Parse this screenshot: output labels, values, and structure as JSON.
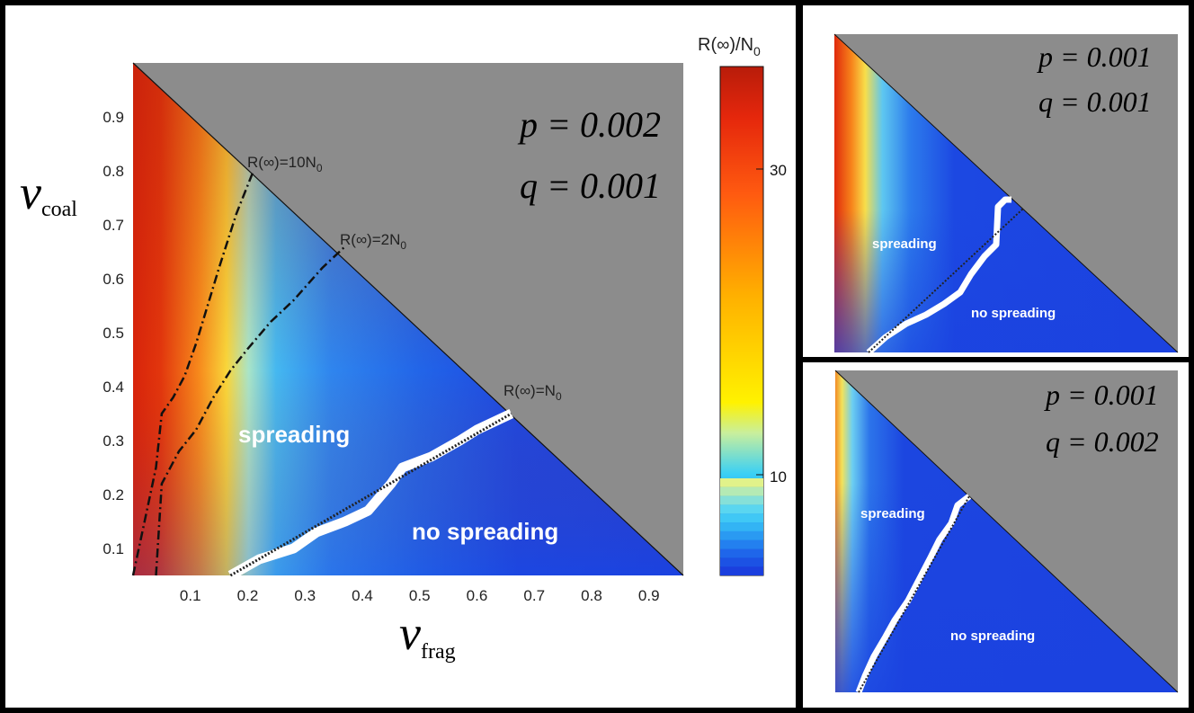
{
  "chart_data": [
    {
      "type": "heatmap",
      "panel": "main",
      "colorbar": {
        "title": "R(∞)/N",
        "title_sub": "0",
        "ticks": [
          10,
          30
        ]
      },
      "xlabel": "ν",
      "xlabel_sub": "frag",
      "ylabel": "ν",
      "ylabel_sub": "coal",
      "xticks": [
        0.1,
        0.2,
        0.3,
        0.4,
        0.5,
        0.6,
        0.7,
        0.8,
        0.9
      ],
      "yticks": [
        0.1,
        0.2,
        0.3,
        0.4,
        0.5,
        0.6,
        0.7,
        0.8,
        0.9
      ],
      "xlim": [
        0,
        0.96
      ],
      "ylim": [
        0.05,
        1.0
      ],
      "params": [
        {
          "label": "p = 0.002"
        },
        {
          "label": "q = 0.001"
        }
      ],
      "contours": [
        {
          "label": "R(∞)=10N",
          "label_sub": "0",
          "style": "dash-dot",
          "x": [
            0.0,
            0.02,
            0.04,
            0.05,
            0.07,
            0.09,
            0.11,
            0.13,
            0.15,
            0.18,
            0.21
          ],
          "y": [
            0.05,
            0.15,
            0.25,
            0.35,
            0.38,
            0.42,
            0.48,
            0.55,
            0.62,
            0.72,
            0.8
          ]
        },
        {
          "label": "R(∞)=2N",
          "label_sub": "0",
          "style": "dash-dot",
          "x": [
            0.04,
            0.05,
            0.08,
            0.11,
            0.14,
            0.17,
            0.2,
            0.24,
            0.28,
            0.33,
            0.37
          ],
          "y": [
            0.05,
            0.22,
            0.28,
            0.32,
            0.38,
            0.43,
            0.47,
            0.52,
            0.56,
            0.62,
            0.66
          ]
        },
        {
          "label": "R(∞)=N",
          "label_sub": "0",
          "style": "white-boundary",
          "x": [
            0.17,
            0.22,
            0.28,
            0.32,
            0.37,
            0.41,
            0.45,
            0.47,
            0.52,
            0.57,
            0.6,
            0.66
          ],
          "y": [
            0.05,
            0.08,
            0.1,
            0.13,
            0.15,
            0.17,
            0.22,
            0.25,
            0.27,
            0.3,
            0.32,
            0.35
          ]
        }
      ],
      "regions": [
        "spreading",
        "no spreading"
      ]
    },
    {
      "type": "heatmap",
      "panel": "inset-top",
      "params": [
        {
          "label": "p = 0.001"
        },
        {
          "label": "q = 0.001"
        }
      ],
      "regions": [
        "spreading",
        "no spreading"
      ]
    },
    {
      "type": "heatmap",
      "panel": "inset-bottom",
      "params": [
        {
          "label": "p = 0.001"
        },
        {
          "label": "q = 0.002"
        }
      ],
      "regions": [
        "spreading",
        "no spreading"
      ]
    }
  ],
  "colors": {
    "nan_gray": "#8c8c8c",
    "low_blue": "#1c45e4",
    "high_red": "#c01f0a"
  }
}
